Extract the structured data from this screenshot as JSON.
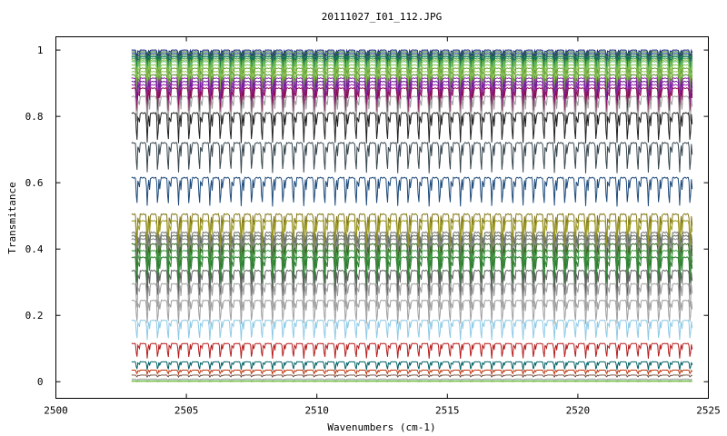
{
  "chart_data": {
    "type": "line",
    "title": "20111027_I01_112.JPG",
    "xlabel": "Wavenumbers (cm-1)",
    "ylabel": "Transmitance",
    "xlim": [
      2500,
      2525
    ],
    "ylim": [
      -0.05,
      1.04
    ],
    "x_ticks": [
      "2500",
      "2505",
      "2510",
      "2515",
      "2520",
      "2525"
    ],
    "y_ticks": [
      "0",
      "0.2",
      "0.4",
      "0.6",
      "0.8",
      "1"
    ],
    "x_range": [
      2502.9,
      2524.4
    ],
    "grid": false,
    "legend": "none",
    "line_spacing_cm": 0.4,
    "series": [
      {
        "baseline": 1.0,
        "depth": 0.02,
        "color": "#1a237e"
      },
      {
        "baseline": 0.995,
        "depth": 0.025,
        "color": "#2e7d32"
      },
      {
        "baseline": 0.99,
        "depth": 0.03,
        "color": "#283593"
      },
      {
        "baseline": 0.985,
        "depth": 0.035,
        "color": "#388e3c"
      },
      {
        "baseline": 0.98,
        "depth": 0.04,
        "color": "#00695c"
      },
      {
        "baseline": 0.975,
        "depth": 0.045,
        "color": "#43a047"
      },
      {
        "baseline": 0.97,
        "depth": 0.05,
        "color": "#7cb342"
      },
      {
        "baseline": 0.965,
        "depth": 0.055,
        "color": "#66bb6a"
      },
      {
        "baseline": 0.955,
        "depth": 0.06,
        "color": "#8bc34a"
      },
      {
        "baseline": 0.945,
        "depth": 0.065,
        "color": "#689f38"
      },
      {
        "baseline": 0.935,
        "depth": 0.07,
        "color": "#9ccc65"
      },
      {
        "baseline": 0.925,
        "depth": 0.07,
        "color": "#558b2f"
      },
      {
        "baseline": 0.915,
        "depth": 0.075,
        "color": "#8e24aa"
      },
      {
        "baseline": 0.905,
        "depth": 0.075,
        "color": "#6a1b9a"
      },
      {
        "baseline": 0.895,
        "depth": 0.08,
        "color": "#9c27b0"
      },
      {
        "baseline": 0.885,
        "depth": 0.08,
        "color": "#880e4f"
      },
      {
        "baseline": 0.86,
        "depth": 0.085,
        "color": "#9e9e9e"
      },
      {
        "baseline": 0.81,
        "depth": 0.09,
        "color": "#212121"
      },
      {
        "baseline": 0.72,
        "depth": 0.09,
        "color": "#37474f"
      },
      {
        "baseline": 0.615,
        "depth": 0.085,
        "color": "#1e4a7a"
      },
      {
        "baseline": 0.505,
        "depth": 0.09,
        "color": "#827717"
      },
      {
        "baseline": 0.485,
        "depth": 0.09,
        "color": "#9e9d24"
      },
      {
        "baseline": 0.45,
        "depth": 0.09,
        "color": "#757575"
      },
      {
        "baseline": 0.44,
        "depth": 0.09,
        "color": "#5d6d5d"
      },
      {
        "baseline": 0.43,
        "depth": 0.09,
        "color": "#8d8d8d"
      },
      {
        "baseline": 0.415,
        "depth": 0.09,
        "color": "#33691e"
      },
      {
        "baseline": 0.395,
        "depth": 0.09,
        "color": "#43a047"
      },
      {
        "baseline": 0.375,
        "depth": 0.09,
        "color": "#2e7d32"
      },
      {
        "baseline": 0.335,
        "depth": 0.085,
        "color": "#616161"
      },
      {
        "baseline": 0.295,
        "depth": 0.08,
        "color": "#9e9e9e"
      },
      {
        "baseline": 0.245,
        "depth": 0.07,
        "color": "#a0a0a0"
      },
      {
        "baseline": 0.185,
        "depth": 0.06,
        "color": "#8ecae6"
      },
      {
        "baseline": 0.115,
        "depth": 0.045,
        "color": "#b71c1c"
      },
      {
        "baseline": 0.06,
        "depth": 0.025,
        "color": "#006064"
      },
      {
        "baseline": 0.035,
        "depth": 0.012,
        "color": "#bf360c"
      },
      {
        "baseline": 0.02,
        "depth": 0.006,
        "color": "#795548"
      },
      {
        "baseline": 0.008,
        "depth": 0.003,
        "color": "#9e9e9e"
      },
      {
        "baseline": 0.003,
        "depth": 0.002,
        "color": "#4caf50"
      },
      {
        "baseline": 0.001,
        "depth": 0.001,
        "color": "#8bc34a"
      }
    ]
  }
}
